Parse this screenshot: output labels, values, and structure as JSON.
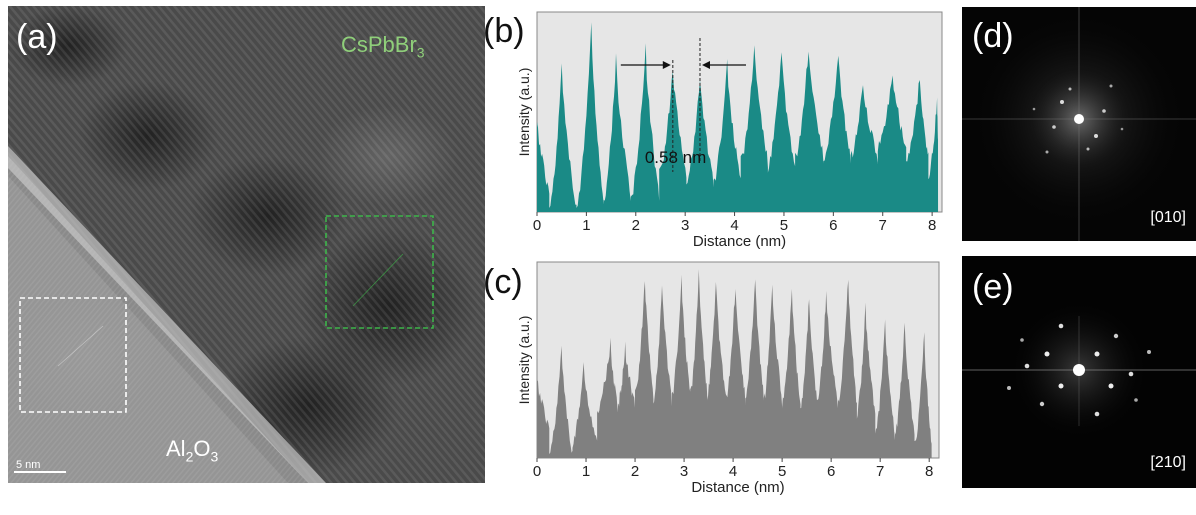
{
  "panel_a": {
    "label": "(a)",
    "material_top": "CsPbBr",
    "material_top_sub": "3",
    "material_bottom": "Al",
    "material_bottom_sub1": "2",
    "material_bottom_mid": "O",
    "material_bottom_sub2": "3",
    "scale_bar": "5 nm"
  },
  "panel_b": {
    "label": "(b)",
    "annotation": "0.58  nm"
  },
  "panel_c": {
    "label": "(c)"
  },
  "panel_d": {
    "label": "(d)",
    "zone_axis": "[010]"
  },
  "panel_e": {
    "label": "(e)",
    "zone_axis": "[210]"
  },
  "colors": {
    "profile_b": "#1a8a86",
    "profile_c": "#808080",
    "plot_bg": "#e6e6e6"
  },
  "chart_data": [
    {
      "type": "area",
      "id": "b",
      "title": "",
      "xlabel": "Distance (nm)",
      "ylabel": "Intensity (a.u.)",
      "xlim": [
        0,
        8.2
      ],
      "ylim": [
        0,
        1
      ],
      "xticks": [
        "0",
        "1",
        "2",
        "3",
        "4",
        "5",
        "6",
        "7",
        "8"
      ],
      "peaks": [
        0.0,
        0.5,
        1.1,
        1.6,
        2.2,
        2.75,
        3.3,
        3.85,
        4.4,
        4.95,
        5.5,
        6.1,
        6.6,
        7.2,
        7.75,
        8.1
      ],
      "peak_heights": [
        0.5,
        0.75,
        0.98,
        0.8,
        0.85,
        0.75,
        0.7,
        0.78,
        0.85,
        0.83,
        0.86,
        0.82,
        0.68,
        0.72,
        0.7,
        0.6
      ],
      "trough_heights": [
        0.12,
        0.05,
        0.05,
        0.1,
        0.1,
        0.22,
        0.18,
        0.18,
        0.28,
        0.25,
        0.3,
        0.3,
        0.3,
        0.35,
        0.3,
        0.2
      ],
      "color": "#1a8a86"
    },
    {
      "type": "area",
      "id": "c",
      "title": "",
      "xlabel": "Distance (nm)",
      "ylabel": "Intensity (a.u.)",
      "xlim": [
        0,
        8.2
      ],
      "ylim": [
        0,
        1
      ],
      "xticks": [
        "0",
        "1",
        "2",
        "3",
        "4",
        "5",
        "6",
        "7",
        "8"
      ],
      "peaks": [
        0.0,
        0.5,
        0.95,
        1.5,
        1.8,
        2.2,
        2.55,
        2.95,
        3.3,
        3.65,
        4.05,
        4.45,
        4.8,
        5.2,
        5.55,
        5.9,
        6.35,
        6.7,
        7.1,
        7.5,
        7.9
      ],
      "peak_heights": [
        0.45,
        0.58,
        0.52,
        0.62,
        0.6,
        0.95,
        0.92,
        0.95,
        0.98,
        0.93,
        0.92,
        0.95,
        0.93,
        0.9,
        0.85,
        0.88,
        0.95,
        0.8,
        0.75,
        0.72,
        0.68
      ],
      "trough_heights": [
        0.18,
        0.05,
        0.1,
        0.28,
        0.3,
        0.35,
        0.32,
        0.35,
        0.35,
        0.35,
        0.33,
        0.35,
        0.32,
        0.3,
        0.3,
        0.33,
        0.3,
        0.25,
        0.15,
        0.15,
        0.1
      ],
      "color": "#808080"
    }
  ]
}
